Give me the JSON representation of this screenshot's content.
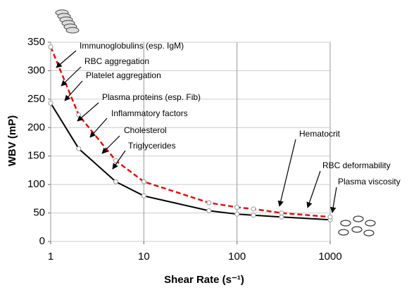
{
  "chart_data": {
    "type": "line",
    "x_label": "Shear Rate (s⁻¹)",
    "y_label": "WBV (mP)",
    "x": [
      1,
      2,
      5,
      10,
      50,
      100,
      150,
      300,
      1000
    ],
    "series": [
      {
        "color": "#000000",
        "dash": false,
        "values": [
          243,
          163,
          105,
          80,
          54,
          48,
          46,
          43,
          38
        ]
      },
      {
        "color": "#dd1111",
        "dash": true,
        "values": [
          342,
          222,
          142,
          105,
          68,
          60,
          57,
          50,
          43
        ]
      }
    ],
    "xlim": [
      1,
      1000
    ],
    "xticks": [
      1,
      10,
      100,
      1000
    ],
    "xscale": "log",
    "ylim": [
      0,
      350
    ],
    "yticks": [
      0,
      50,
      100,
      150,
      200,
      250,
      300,
      350
    ],
    "grid": true,
    "annotations": [
      "Immunoglobulins (esp. IgM)",
      "RBC aggregation",
      "Platelet aggregation",
      "Plasma proteins (esp. Fib)",
      "Inflammatory factors",
      "Cholesterol",
      "Triglycerides",
      "Hematocrit",
      "RBC deformability",
      "Plasma viscosity"
    ]
  }
}
